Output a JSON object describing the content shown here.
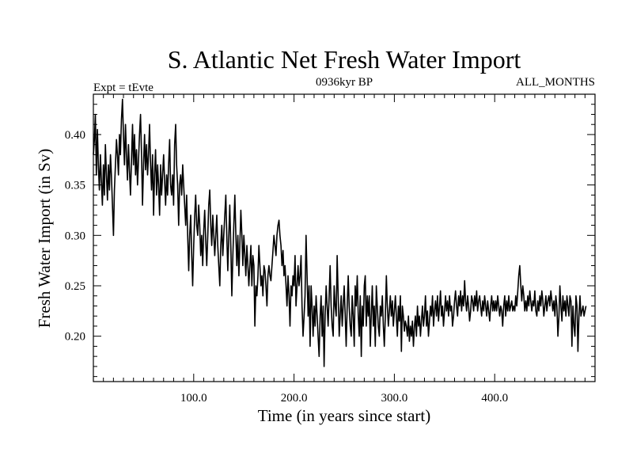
{
  "chart_data": {
    "type": "line",
    "title": "S. Atlantic Net Fresh Water Import",
    "subtitle_left": "Expt = tEvte",
    "subtitle_center": "0936kyr BP",
    "subtitle_right": "ALL_MONTHS",
    "xlabel": "Time (in years since start)",
    "ylabel": "Fresh Water Import (in Sv)",
    "xlim": [
      0,
      500
    ],
    "ylim": [
      0.155,
      0.44
    ],
    "x_tick_values": [
      100,
      200,
      300,
      400
    ],
    "x_tick_labels": [
      "100.0",
      "200.0",
      "300.0",
      "400.0"
    ],
    "y_tick_values": [
      0.2,
      0.25,
      0.3,
      0.35,
      0.4
    ],
    "y_tick_labels": [
      "0.20",
      "0.25",
      "0.30",
      "0.35",
      "0.40"
    ],
    "x_start": 0,
    "x_step": 1,
    "series": [
      {
        "name": "Fresh Water Import",
        "color": "#000000",
        "values": [
          0.38,
          0.395,
          0.42,
          0.36,
          0.405,
          0.37,
          0.345,
          0.38,
          0.355,
          0.33,
          0.37,
          0.34,
          0.39,
          0.36,
          0.335,
          0.37,
          0.345,
          0.38,
          0.36,
          0.33,
          0.3,
          0.345,
          0.37,
          0.395,
          0.38,
          0.36,
          0.4,
          0.38,
          0.415,
          0.435,
          0.4,
          0.37,
          0.41,
          0.38,
          0.355,
          0.39,
          0.365,
          0.34,
          0.375,
          0.41,
          0.37,
          0.4,
          0.36,
          0.385,
          0.35,
          0.375,
          0.4,
          0.42,
          0.38,
          0.33,
          0.37,
          0.4,
          0.365,
          0.39,
          0.36,
          0.38,
          0.41,
          0.37,
          0.345,
          0.38,
          0.32,
          0.36,
          0.385,
          0.34,
          0.37,
          0.35,
          0.32,
          0.37,
          0.34,
          0.36,
          0.38,
          0.355,
          0.33,
          0.36,
          0.34,
          0.37,
          0.395,
          0.35,
          0.34,
          0.36,
          0.33,
          0.39,
          0.41,
          0.37,
          0.35,
          0.31,
          0.35,
          0.36,
          0.34,
          0.37,
          0.35,
          0.33,
          0.31,
          0.34,
          0.3,
          0.265,
          0.3,
          0.32,
          0.28,
          0.25,
          0.29,
          0.32,
          0.34,
          0.31,
          0.3,
          0.33,
          0.31,
          0.28,
          0.3,
          0.27,
          0.305,
          0.325,
          0.295,
          0.27,
          0.3,
          0.33,
          0.345,
          0.31,
          0.29,
          0.32,
          0.3,
          0.28,
          0.3,
          0.32,
          0.29,
          0.27,
          0.25,
          0.29,
          0.31,
          0.28,
          0.3,
          0.32,
          0.34,
          0.3,
          0.265,
          0.3,
          0.33,
          0.29,
          0.24,
          0.28,
          0.31,
          0.34,
          0.3,
          0.27,
          0.3,
          0.26,
          0.29,
          0.325,
          0.3,
          0.27,
          0.3,
          0.28,
          0.26,
          0.29,
          0.27,
          0.25,
          0.27,
          0.29,
          0.25,
          0.28,
          0.27,
          0.21,
          0.25,
          0.24,
          0.26,
          0.29,
          0.27,
          0.25,
          0.26,
          0.24,
          0.27,
          0.265,
          0.25,
          0.23,
          0.26,
          0.27,
          0.26,
          0.255,
          0.27,
          0.285,
          0.3,
          0.29,
          0.28,
          0.3,
          0.31,
          0.315,
          0.3,
          0.29,
          0.27,
          0.285,
          0.26,
          0.27,
          0.25,
          0.23,
          0.26,
          0.24,
          0.21,
          0.25,
          0.24,
          0.26,
          0.25,
          0.28,
          0.23,
          0.25,
          0.27,
          0.25,
          0.26,
          0.28,
          0.23,
          0.2,
          0.22,
          0.24,
          0.3,
          0.26,
          0.22,
          0.25,
          0.19,
          0.25,
          0.23,
          0.2,
          0.23,
          0.21,
          0.24,
          0.22,
          0.2,
          0.18,
          0.22,
          0.24,
          0.2,
          0.23,
          0.17,
          0.22,
          0.25,
          0.23,
          0.21,
          0.24,
          0.27,
          0.23,
          0.21,
          0.2,
          0.25,
          0.23,
          0.22,
          0.28,
          0.24,
          0.2,
          0.22,
          0.24,
          0.21,
          0.23,
          0.25,
          0.22,
          0.19,
          0.23,
          0.26,
          0.23,
          0.21,
          0.2,
          0.24,
          0.22,
          0.19,
          0.25,
          0.23,
          0.26,
          0.22,
          0.2,
          0.24,
          0.18,
          0.23,
          0.21,
          0.25,
          0.26,
          0.21,
          0.24,
          0.22,
          0.24,
          0.19,
          0.22,
          0.25,
          0.21,
          0.23,
          0.19,
          0.25,
          0.23,
          0.21,
          0.2,
          0.23,
          0.22,
          0.24,
          0.21,
          0.19,
          0.22,
          0.26,
          0.23,
          0.21,
          0.225,
          0.24,
          0.22,
          0.235,
          0.21,
          0.225,
          0.24,
          0.22,
          0.2,
          0.23,
          0.215,
          0.24,
          0.185,
          0.23,
          0.22,
          0.205,
          0.215,
          0.21,
          0.2,
          0.22,
          0.195,
          0.21,
          0.2,
          0.215,
          0.19,
          0.21,
          0.22,
          0.2,
          0.23,
          0.21,
          0.22,
          0.2,
          0.215,
          0.23,
          0.21,
          0.22,
          0.24,
          0.21,
          0.225,
          0.2,
          0.215,
          0.23,
          0.22,
          0.24,
          0.21,
          0.225,
          0.235,
          0.22,
          0.24,
          0.215,
          0.23,
          0.245,
          0.22,
          0.23,
          0.21,
          0.225,
          0.24,
          0.225,
          0.235,
          0.22,
          0.24,
          0.225,
          0.23,
          0.21,
          0.22,
          0.235,
          0.245,
          0.23,
          0.22,
          0.24,
          0.23,
          0.245,
          0.225,
          0.24,
          0.23,
          0.255,
          0.235,
          0.225,
          0.24,
          0.23,
          0.215,
          0.225,
          0.24,
          0.235,
          0.225,
          0.24,
          0.23,
          0.245,
          0.225,
          0.235,
          0.24,
          0.23,
          0.22,
          0.235,
          0.225,
          0.24,
          0.23,
          0.22,
          0.235,
          0.225,
          0.215,
          0.23,
          0.24,
          0.225,
          0.235,
          0.225,
          0.235,
          0.225,
          0.24,
          0.23,
          0.22,
          0.23,
          0.225,
          0.21,
          0.23,
          0.24,
          0.22,
          0.235,
          0.225,
          0.24,
          0.225,
          0.23,
          0.235,
          0.225,
          0.23,
          0.225,
          0.24,
          0.23,
          0.245,
          0.26,
          0.27,
          0.25,
          0.235,
          0.25,
          0.24,
          0.225,
          0.235,
          0.225,
          0.24,
          0.23,
          0.245,
          0.235,
          0.225,
          0.235,
          0.23,
          0.245,
          0.225,
          0.22,
          0.235,
          0.225,
          0.24,
          0.23,
          0.245,
          0.235,
          0.22,
          0.23,
          0.24,
          0.225,
          0.235,
          0.24,
          0.23,
          0.245,
          0.235,
          0.225,
          0.235,
          0.22,
          0.24,
          0.23,
          0.2,
          0.22,
          0.25,
          0.23,
          0.215,
          0.24,
          0.225,
          0.235,
          0.22,
          0.24,
          0.23,
          0.22,
          0.24,
          0.235,
          0.19,
          0.23,
          0.21,
          0.2,
          0.24,
          0.23,
          0.185,
          0.22,
          0.24,
          0.22,
          0.225,
          0.23,
          0.22,
          0.225,
          0.23
        ]
      }
    ]
  }
}
